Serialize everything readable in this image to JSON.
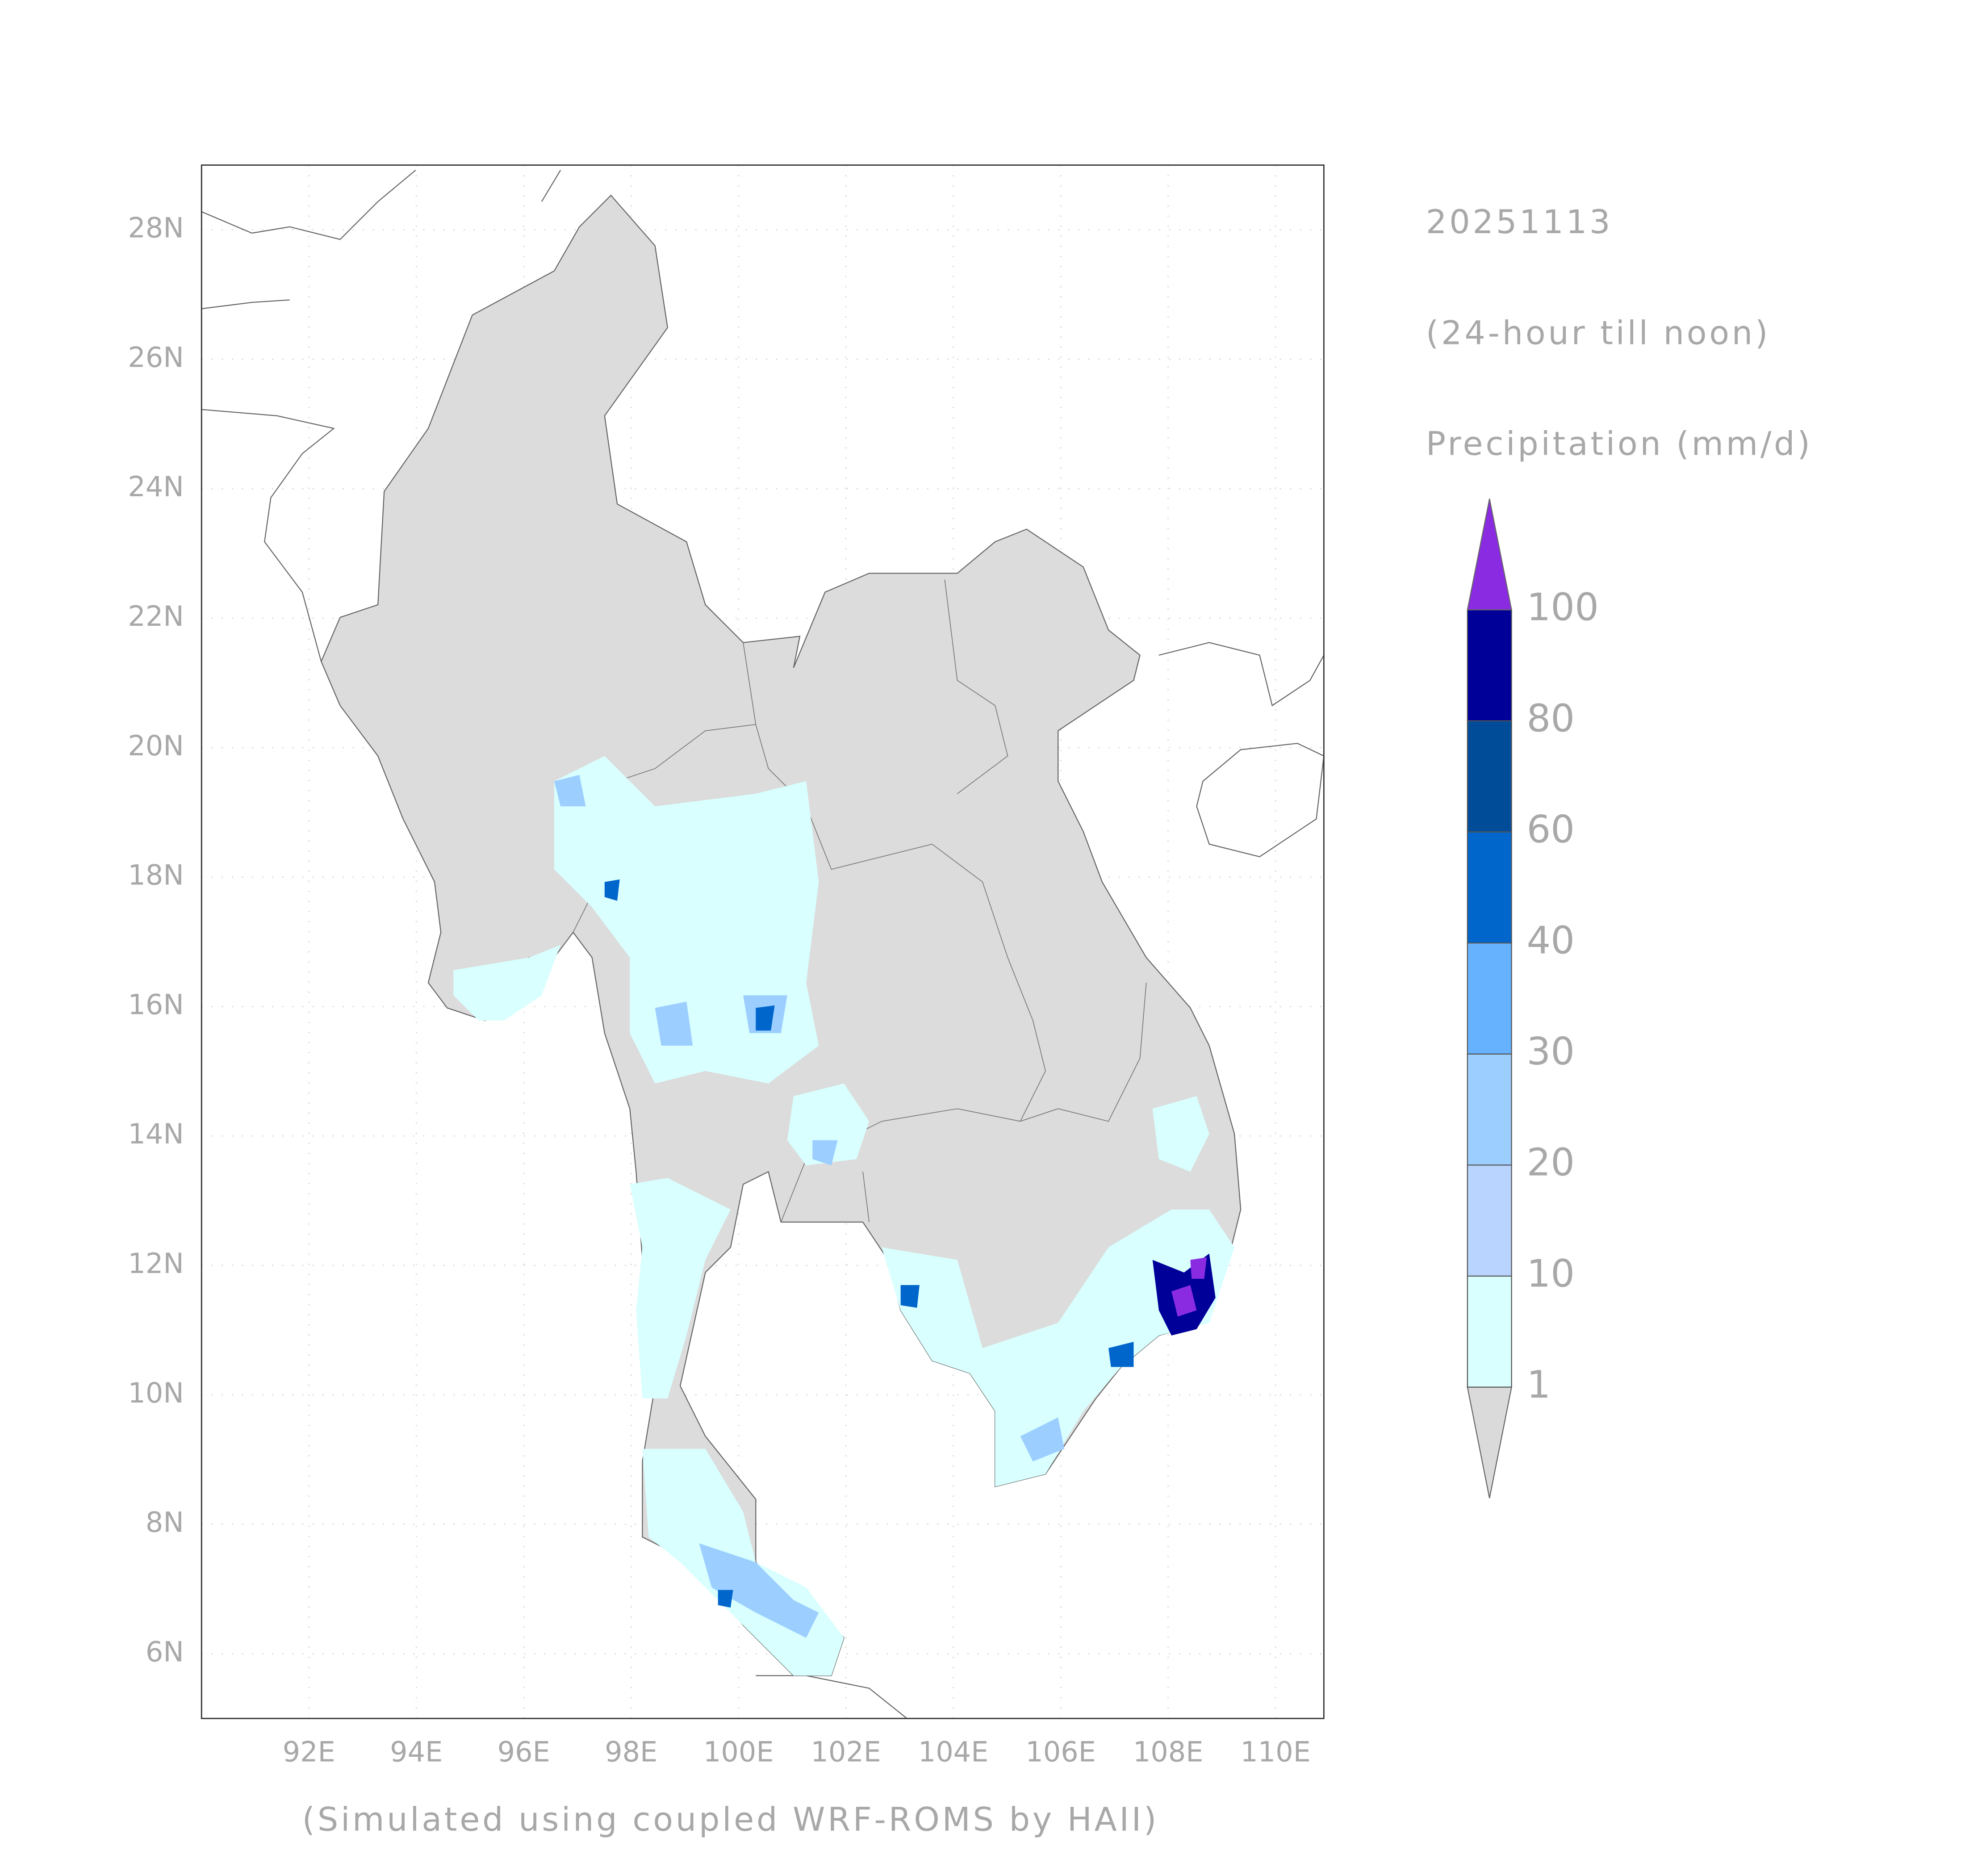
{
  "date": "20251113",
  "period": "(24-hour till noon)",
  "variable": "Precipitation (mm/d)",
  "footer": "(Simulated using coupled WRF-ROMS by HAII)",
  "map": {
    "lon_range": [
      90,
      110.9
    ],
    "lat_range": [
      5,
      29
    ],
    "lon_ticks": [
      {
        "value": 92,
        "label": "92E"
      },
      {
        "value": 94,
        "label": "94E"
      },
      {
        "value": 96,
        "label": "96E"
      },
      {
        "value": 98,
        "label": "98E"
      },
      {
        "value": 100,
        "label": "100E"
      },
      {
        "value": 102,
        "label": "102E"
      },
      {
        "value": 104,
        "label": "104E"
      },
      {
        "value": 106,
        "label": "106E"
      },
      {
        "value": 108,
        "label": "108E"
      },
      {
        "value": 110,
        "label": "110E"
      }
    ],
    "lat_ticks": [
      {
        "value": 6,
        "label": "6N"
      },
      {
        "value": 8,
        "label": "8N"
      },
      {
        "value": 10,
        "label": "10N"
      },
      {
        "value": 12,
        "label": "12N"
      },
      {
        "value": 14,
        "label": "14N"
      },
      {
        "value": 16,
        "label": "16N"
      },
      {
        "value": 18,
        "label": "18N"
      },
      {
        "value": 20,
        "label": "20N"
      },
      {
        "value": 22,
        "label": "22N"
      },
      {
        "value": 24,
        "label": "24N"
      },
      {
        "value": 26,
        "label": "26N"
      },
      {
        "value": 28,
        "label": "28N"
      }
    ],
    "grid": true
  },
  "colorbar": {
    "levels": [
      1,
      10,
      20,
      30,
      40,
      60,
      80,
      100
    ],
    "colors": [
      "#dadada",
      "#d9ffff",
      "#b8d4ff",
      "#9ccfff",
      "#66b2ff",
      "#0066cc",
      "#004c99",
      "#000099",
      "#8a2be2"
    ]
  }
}
